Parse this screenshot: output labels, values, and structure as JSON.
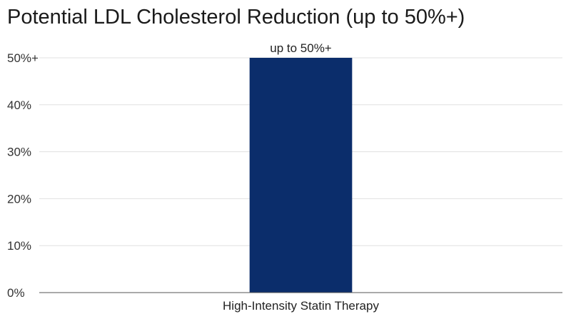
{
  "chart_data": {
    "type": "bar",
    "title": "Potential LDL Cholesterol Reduction (up to 50%+)",
    "xlabel": "",
    "ylabel": "",
    "categories": [
      "High-Intensity Statin Therapy"
    ],
    "values": [
      50
    ],
    "data_labels": [
      "up to 50%+"
    ],
    "ylim": [
      0,
      50
    ],
    "yticks": [
      0,
      10,
      20,
      30,
      40,
      50
    ],
    "ytick_labels": [
      "0%",
      "10%",
      "20%",
      "30%",
      "40%",
      "50%+"
    ],
    "grid": true,
    "legend": "none",
    "colors": {
      "bar": "#0b2d6b",
      "grid": "#e0e0e0",
      "axis": "#555555"
    }
  }
}
